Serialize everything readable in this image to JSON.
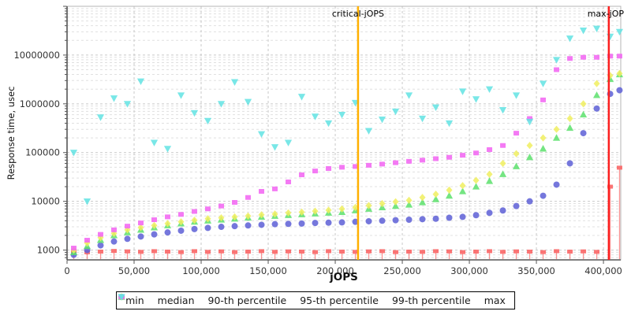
{
  "chart_data": {
    "type": "scatter",
    "title": "",
    "xlabel": "jOPS",
    "ylabel": "Response time, usec",
    "grid": true,
    "legend_position": "bottom",
    "xlim": [
      0,
      412900
    ],
    "ylim": [
      630,
      100000000
    ],
    "y_scale": "log",
    "x_ticks": [
      "0",
      "50,000",
      "100,000",
      "150,000",
      "200,000",
      "250,000",
      "300,000",
      "350,000",
      "400,000"
    ],
    "x_tick_values": [
      0,
      50000,
      100000,
      150000,
      200000,
      250000,
      300000,
      350000,
      400000
    ],
    "y_ticks": [
      "1000",
      "10000",
      "100000",
      "1000000",
      "10000000"
    ],
    "y_tick_values": [
      1000,
      10000,
      100000,
      1000000,
      10000000
    ],
    "vlines": [
      {
        "label": "critical-jOPS",
        "x": 217000,
        "color": "#ffb000",
        "label_anchor": "middle"
      },
      {
        "label": "max-jOP",
        "x": 404000,
        "color": "#fc1f1f",
        "label_anchor": "end"
      }
    ],
    "x": [
      5000,
      15000,
      25000,
      35000,
      45000,
      55000,
      65000,
      75000,
      85000,
      95000,
      105000,
      115000,
      125000,
      135000,
      145000,
      155000,
      165000,
      175000,
      185000,
      195000,
      205000,
      215000,
      225000,
      235000,
      245000,
      255000,
      265000,
      275000,
      285000,
      295000,
      305000,
      315000,
      325000,
      335000,
      345000,
      355000,
      365000,
      375000,
      385000,
      395000,
      405000,
      412000
    ],
    "series": [
      {
        "name": "min",
        "marker": "square-stem",
        "color": "#fa5d5d",
        "values": [
          950,
          900,
          930,
          960,
          940,
          920,
          950,
          930,
          910,
          950,
          920,
          940,
          910,
          930,
          950,
          920,
          940,
          930,
          910,
          950,
          930,
          920,
          940,
          950,
          910,
          930,
          920,
          950,
          940,
          910,
          930,
          950,
          920,
          940,
          930,
          910,
          950,
          930,
          940,
          920,
          20000,
          49000
        ]
      },
      {
        "name": "median",
        "marker": "circle",
        "color": "#5d5fd6",
        "values": [
          800,
          1000,
          1250,
          1500,
          1700,
          1900,
          2100,
          2300,
          2500,
          2700,
          2850,
          3000,
          3100,
          3200,
          3300,
          3400,
          3450,
          3500,
          3600,
          3650,
          3700,
          3800,
          3900,
          4000,
          4100,
          4200,
          4300,
          4400,
          4600,
          4800,
          5200,
          5800,
          6500,
          8000,
          10000,
          13000,
          22000,
          60000,
          250000,
          800000,
          1600000,
          1900000
        ]
      },
      {
        "name": "90-th percentile",
        "marker": "triangle-up",
        "color": "#5ce06c",
        "values": [
          900,
          1200,
          1600,
          2000,
          2300,
          2600,
          2900,
          3200,
          3500,
          3800,
          4000,
          4200,
          4400,
          4600,
          4800,
          5000,
          5200,
          5400,
          5600,
          5800,
          6000,
          6500,
          7000,
          7500,
          8000,
          8500,
          9500,
          11000,
          13000,
          16000,
          20000,
          26000,
          36000,
          52000,
          80000,
          120000,
          200000,
          320000,
          600000,
          1500000,
          3200000,
          4000000
        ]
      },
      {
        "name": "95-th percentile",
        "marker": "diamond",
        "color": "#f0ef5f",
        "values": [
          1000,
          1400,
          1800,
          2200,
          2600,
          2900,
          3200,
          3500,
          3800,
          4100,
          4400,
          4600,
          4800,
          5000,
          5300,
          5500,
          5800,
          6000,
          6300,
          6600,
          7000,
          7500,
          8200,
          9000,
          9800,
          10500,
          12000,
          14000,
          17000,
          21000,
          27000,
          36000,
          60000,
          95000,
          140000,
          200000,
          300000,
          500000,
          1000000,
          2600000,
          3800000,
          4200000
        ]
      },
      {
        "name": "99-th percentile",
        "marker": "square",
        "color": "#f263f2",
        "values": [
          1100,
          1600,
          2100,
          2600,
          3100,
          3600,
          4200,
          4800,
          5400,
          6200,
          7000,
          8000,
          9500,
          12000,
          16000,
          18000,
          25000,
          35000,
          42000,
          47000,
          50000,
          52000,
          55000,
          58000,
          62000,
          66000,
          70000,
          75000,
          80000,
          88000,
          98000,
          115000,
          140000,
          250000,
          500000,
          1200000,
          5000000,
          8500000,
          9000000,
          9000000,
          9500000,
          9500000
        ]
      },
      {
        "name": "max",
        "marker": "triangle-down",
        "color": "#62e3e3",
        "values": [
          100000,
          10000,
          530000,
          1300000,
          1000000,
          2900000,
          160000,
          120000,
          1500000,
          650000,
          450000,
          1000000,
          2800000,
          1100000,
          240000,
          130000,
          160000,
          1400000,
          550000,
          400000,
          600000,
          1050000,
          280000,
          480000,
          700000,
          1500000,
          500000,
          850000,
          400000,
          1800000,
          1250000,
          2000000,
          750000,
          1500000,
          430000,
          2600000,
          8000000,
          22000000,
          32000000,
          35000000,
          24000000,
          30000000
        ]
      }
    ],
    "colors": {
      "grid_major": "#c9c9c9",
      "grid_minor": "#e0e0e0",
      "axis": "#555555",
      "frame": "#b4b4b4",
      "critical_line": "#ffb000",
      "max_line": "#fc1f1f"
    }
  }
}
